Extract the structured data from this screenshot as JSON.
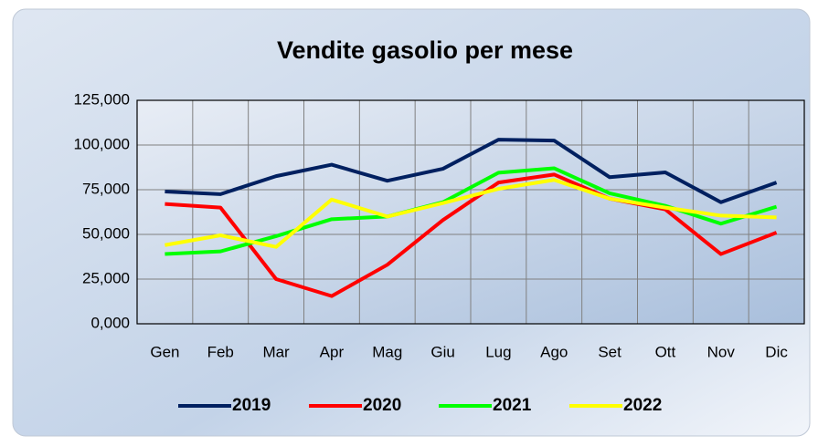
{
  "chart_data": {
    "type": "line",
    "title": "Vendite gasolio per mese",
    "categories": [
      "Gen",
      "Feb",
      "Mar",
      "Apr",
      "Mag",
      "Giu",
      "Lug",
      "Ago",
      "Set",
      "Ott",
      "Nov",
      "Dic"
    ],
    "series": [
      {
        "name": "2019",
        "color": "#002060",
        "values": [
          74000,
          72500,
          82600,
          89000,
          80000,
          86700,
          103000,
          102500,
          82000,
          84700,
          68000,
          79000
        ]
      },
      {
        "name": "2020",
        "color": "#ff0000",
        "values": [
          67000,
          65000,
          25000,
          15500,
          33000,
          58000,
          79000,
          83500,
          70000,
          64000,
          39000,
          51000
        ]
      },
      {
        "name": "2021",
        "color": "#00ff00",
        "values": [
          39000,
          40500,
          49000,
          58500,
          60000,
          68000,
          84500,
          87000,
          73000,
          66000,
          56000,
          65500
        ]
      },
      {
        "name": "2022",
        "color": "#ffff00",
        "values": [
          44000,
          49500,
          43000,
          69500,
          60000,
          67500,
          75500,
          80500,
          70000,
          65000,
          60500,
          59500
        ]
      }
    ],
    "ylim": [
      0,
      125000
    ],
    "yticks": [
      {
        "value": 0,
        "label": "0,000"
      },
      {
        "value": 25000,
        "label": "25,000"
      },
      {
        "value": 50000,
        "label": "50,000"
      },
      {
        "value": 75000,
        "label": "75,000"
      },
      {
        "value": 100000,
        "label": "100,000"
      },
      {
        "value": 125000,
        "label": "125,000"
      }
    ],
    "grid": true,
    "legend": "bottom"
  }
}
